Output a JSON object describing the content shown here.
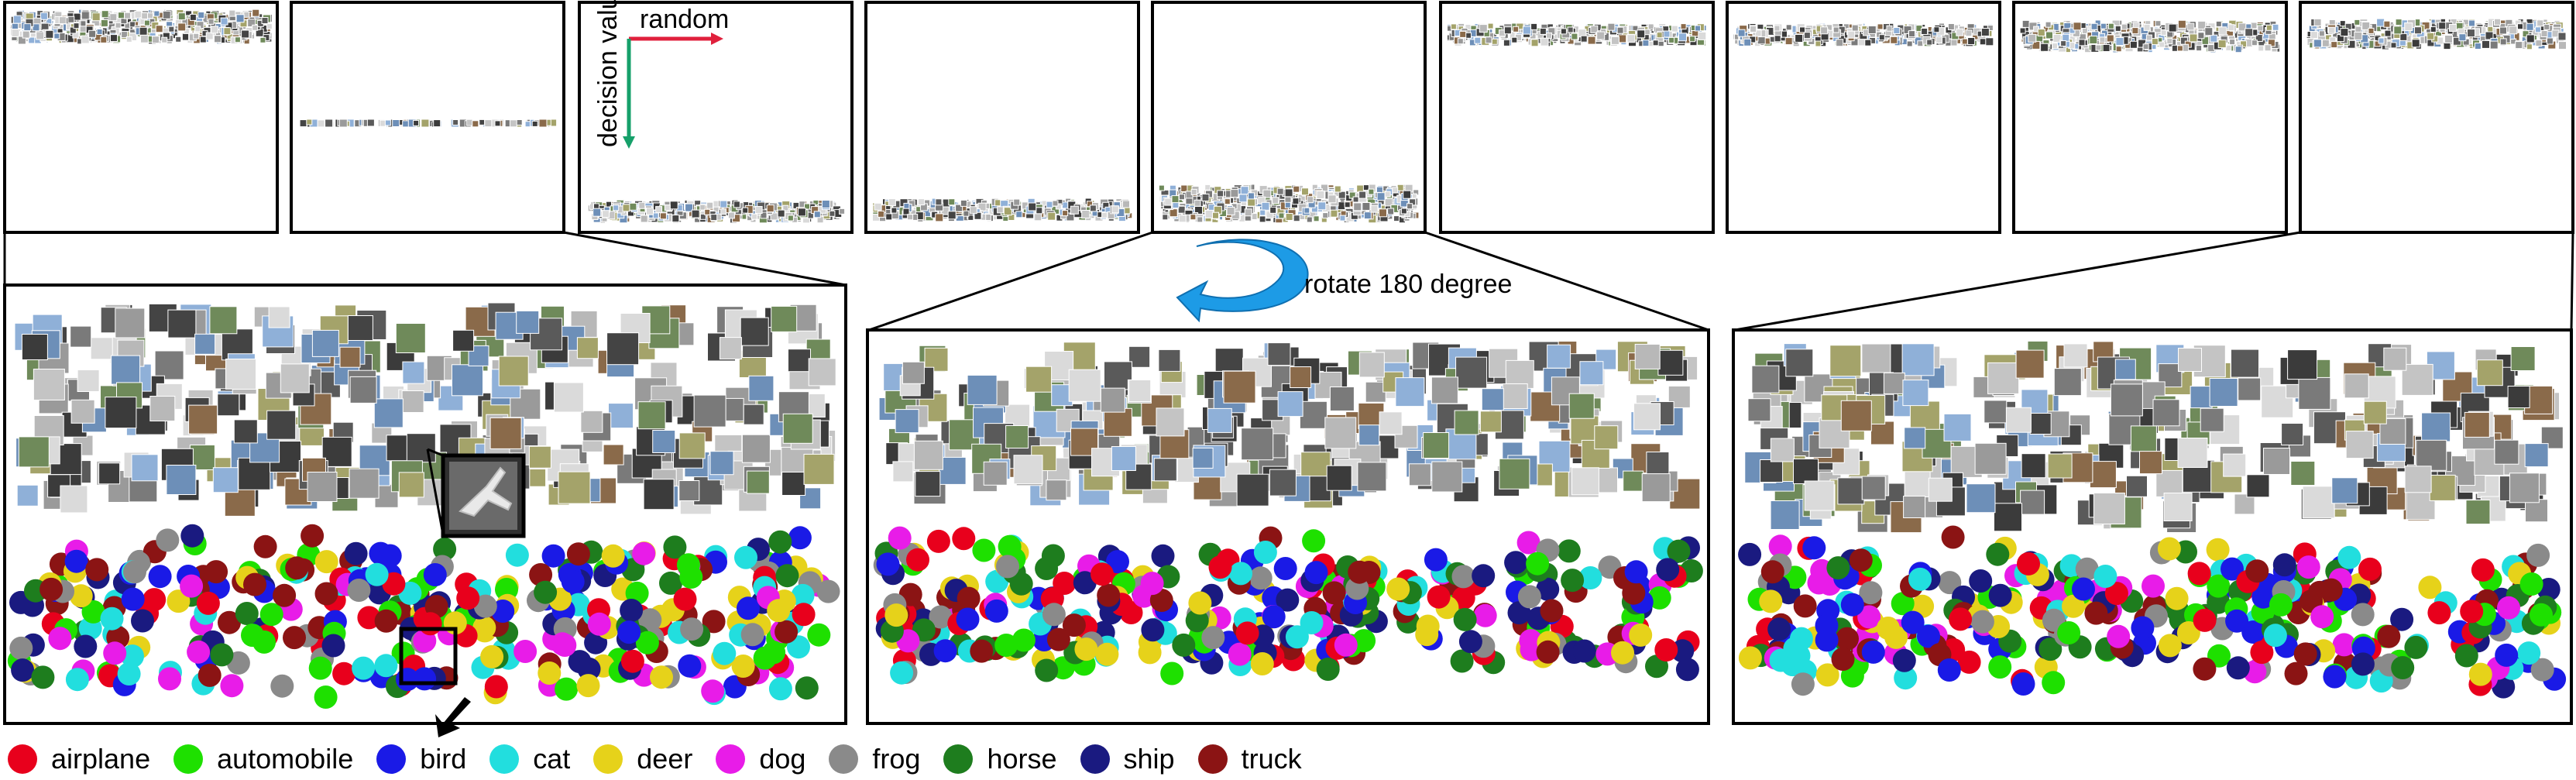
{
  "annotations": {
    "axis_random": "random",
    "axis_decision": "decision value",
    "rotate": "rotate 180 degree"
  },
  "colors": {
    "airplane": "#e8001c",
    "automobile": "#1ee000",
    "bird": "#1a1ae6",
    "cat": "#22dede",
    "deer": "#e6d21a",
    "dog": "#e81ce8",
    "frog": "#8a8a8a",
    "horse": "#1e7d1e",
    "ship": "#1a1a80",
    "truck": "#8b1414",
    "axis_random": "#e0203c",
    "axis_decision": "#16a06a",
    "rotate_arrow": "#1d9be6"
  },
  "legend": [
    {
      "label": "airplane",
      "color": "#e8001c"
    },
    {
      "label": "automobile",
      "color": "#1ee000"
    },
    {
      "label": "bird",
      "color": "#1a1ae6"
    },
    {
      "label": "cat",
      "color": "#22dede"
    },
    {
      "label": "deer",
      "color": "#e6d21a"
    },
    {
      "label": "dog",
      "color": "#e81ce8"
    },
    {
      "label": "frog",
      "color": "#8a8a8a"
    },
    {
      "label": "horse",
      "color": "#1e7d1e"
    },
    {
      "label": "ship",
      "color": "#1a1a80"
    },
    {
      "label": "truck",
      "color": "#8b1414"
    }
  ]
}
